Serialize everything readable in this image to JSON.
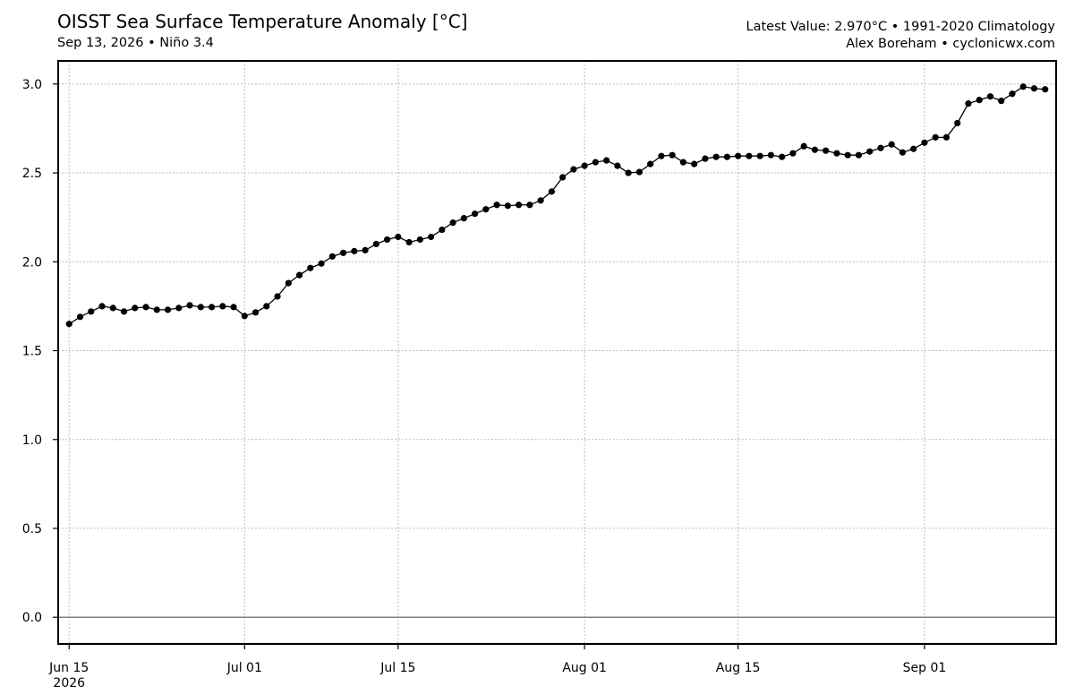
{
  "header": {
    "title": "OISST Sea Surface Temperature Anomaly [°C]",
    "subtitle": "Sep 13, 2026 • Niño 3.4",
    "right_line1": "Latest Value: 2.970°C • 1991-2020 Climatology",
    "right_line2": "Alex Boreham • cyclonicwx.com"
  },
  "chart_data": {
    "type": "line",
    "title": "OISST Sea Surface Temperature Anomaly [°C]",
    "xlabel": "",
    "ylabel": "",
    "xlim": [
      "2026-06-14",
      "2026-09-13"
    ],
    "ylim": [
      -0.15,
      3.13
    ],
    "grid": true,
    "marker": "circle",
    "line_color": "#000000",
    "zero_line_color": "#808080",
    "yticks": [
      0.0,
      0.5,
      1.0,
      1.5,
      2.0,
      2.5,
      3.0
    ],
    "ytick_labels": [
      "0.0",
      "0.5",
      "1.0",
      "1.5",
      "2.0",
      "2.5",
      "3.0"
    ],
    "xticks": [
      {
        "date": "2026-06-15",
        "label": "Jun 15",
        "sublabel": "2026"
      },
      {
        "date": "2026-07-01",
        "label": "Jul 01",
        "sublabel": ""
      },
      {
        "date": "2026-07-15",
        "label": "Jul 15",
        "sublabel": ""
      },
      {
        "date": "2026-08-01",
        "label": "Aug 01",
        "sublabel": ""
      },
      {
        "date": "2026-08-15",
        "label": "Aug 15",
        "sublabel": ""
      },
      {
        "date": "2026-09-01",
        "label": "Sep 01",
        "sublabel": ""
      }
    ],
    "start_date": "2026-06-15",
    "series": [
      {
        "values": [
          1.65,
          1.69,
          1.72,
          1.75,
          1.74,
          1.72,
          1.74,
          1.745,
          1.73,
          1.73,
          1.74,
          1.755,
          1.745,
          1.745,
          1.75,
          1.745,
          1.695,
          1.715,
          1.75,
          1.805,
          1.88,
          1.925,
          1.965,
          1.99,
          2.03,
          2.05,
          2.06,
          2.065,
          2.1,
          2.125,
          2.14,
          2.11,
          2.125,
          2.14,
          2.18,
          2.22,
          2.245,
          2.27,
          2.295,
          2.32,
          2.315,
          2.32,
          2.32,
          2.345,
          2.395,
          2.475,
          2.52,
          2.54,
          2.56,
          2.57,
          2.54,
          2.5,
          2.505,
          2.55,
          2.595,
          2.6,
          2.56,
          2.55,
          2.58,
          2.59,
          2.59,
          2.595,
          2.595,
          2.595,
          2.6,
          2.59,
          2.61,
          2.65,
          2.63,
          2.625,
          2.61,
          2.6,
          2.6,
          2.62,
          2.64,
          2.66,
          2.615,
          2.635,
          2.67,
          2.7,
          2.7,
          2.78,
          2.89,
          2.91,
          2.93,
          2.905,
          2.945,
          2.985,
          2.975,
          2.97
        ]
      }
    ]
  }
}
